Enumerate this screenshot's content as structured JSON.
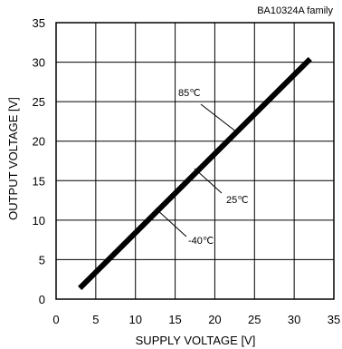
{
  "chart_data": {
    "type": "line",
    "title": "BA10324A  family",
    "xlabel": "SUPPLY VOLTAGE [V]",
    "ylabel": "OUTPUT VOLTAGE [V]",
    "xlim": [
      0,
      35
    ],
    "ylim": [
      0,
      35
    ],
    "xticks": [
      0,
      5,
      10,
      15,
      20,
      25,
      30,
      35
    ],
    "yticks": [
      0,
      5,
      10,
      15,
      20,
      25,
      30,
      35
    ],
    "grid": true,
    "series": [
      {
        "name": "85℃",
        "x": [
          3,
          32
        ],
        "y": [
          1.4,
          30.4
        ]
      },
      {
        "name": "25℃",
        "x": [
          3,
          32
        ],
        "y": [
          1.4,
          30.4
        ]
      },
      {
        "name": "-40℃",
        "x": [
          3,
          32
        ],
        "y": [
          1.4,
          30.4
        ]
      }
    ],
    "annotations": [
      {
        "text": "85℃",
        "series": 0
      },
      {
        "text": "25℃",
        "series": 1
      },
      {
        "text": "-40℃",
        "series": 2
      }
    ]
  }
}
